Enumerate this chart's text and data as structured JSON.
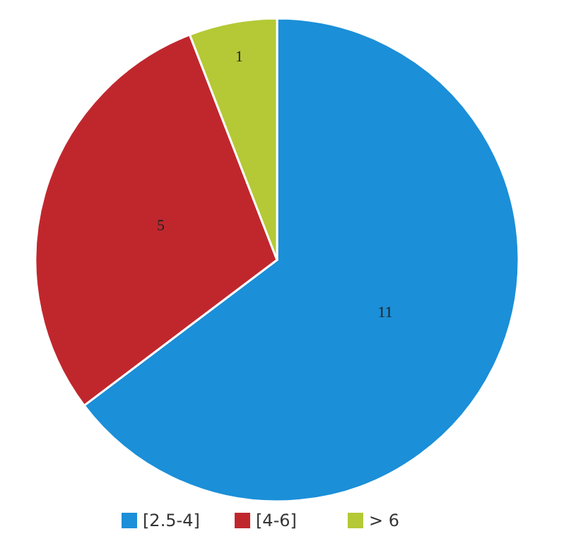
{
  "chart_data": {
    "type": "pie",
    "categories": [
      "[2.5-4]",
      "[4-6]",
      "> 6"
    ],
    "values": [
      11,
      5,
      1
    ],
    "colors": [
      "#1b8fd8",
      "#c0272d",
      "#b4c935"
    ],
    "data_labels": true,
    "legend": "bottom"
  }
}
